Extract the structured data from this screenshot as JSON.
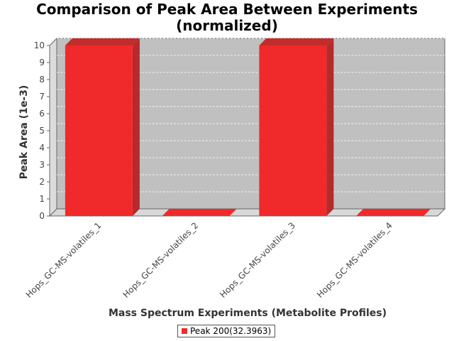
{
  "chart_data": {
    "type": "bar",
    "title_lines": [
      "Comparison of Peak Area Between Experiments",
      "(normalized)"
    ],
    "xlabel": "Mass Spectrum Experiments (Metabolite Profiles)",
    "ylabel": "Peak Area (1e-3)",
    "categories": [
      "Hops_GC-MS-volatiles_1",
      "Hops_GC-MS-volatiles_2",
      "Hops_GC-MS-volatiles_3",
      "Hops_GC-MS-volatiles_4"
    ],
    "series": [
      {
        "name": "Peak 200(32.3963)",
        "values": [
          10,
          0,
          10,
          0
        ],
        "color": "#f02a2a"
      }
    ],
    "ylim": [
      0,
      10
    ],
    "yticks": [
      "0",
      "1",
      "2",
      "3",
      "4",
      "5",
      "6",
      "7",
      "8",
      "9",
      "10"
    ],
    "grid": true,
    "legend_position": "bottom",
    "plot_background": "#c0c0c0"
  }
}
